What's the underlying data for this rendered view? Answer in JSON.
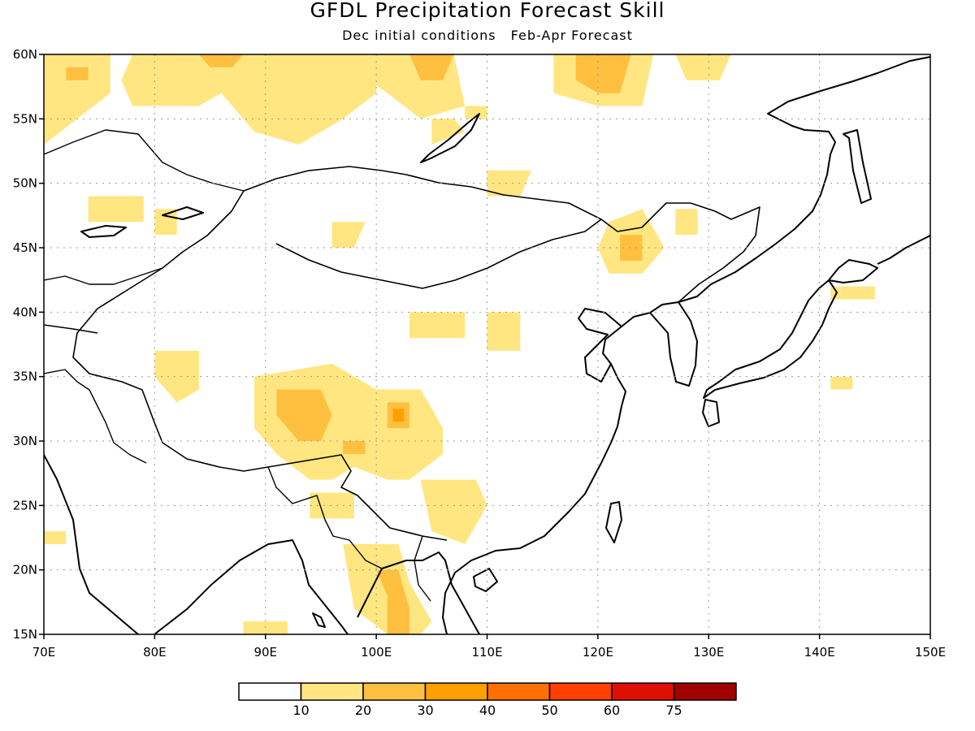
{
  "title": "GFDL Precipitation Forecast Skill",
  "subtitle": {
    "conditions": "Dec initial conditions",
    "forecast": "Feb-Apr Forecast"
  },
  "map": {
    "lon_range": [
      70,
      150
    ],
    "lat_range": [
      15,
      60
    ],
    "lon_ticks": [
      "70E",
      "80E",
      "90E",
      "100E",
      "110E",
      "120E",
      "130E",
      "140E",
      "150E"
    ],
    "lat_ticks": [
      "60N",
      "55N",
      "50N",
      "45N",
      "40N",
      "35N",
      "30N",
      "25N",
      "20N",
      "15N"
    ],
    "gridlines": "dotted"
  },
  "colorbar": {
    "colors": [
      "#ffffff",
      "#ffe680",
      "#ffc040",
      "#ffa000",
      "#ff7000",
      "#ff4000",
      "#e01000",
      "#a00000"
    ],
    "labels": [
      "10",
      "20",
      "30",
      "40",
      "50",
      "60",
      "75"
    ]
  },
  "chart_data": {
    "type": "heatmap",
    "variable": "precipitation forecast skill",
    "levels": [
      10,
      20,
      30,
      40,
      50,
      60,
      75
    ],
    "x_range": [
      70,
      150
    ],
    "y_range": [
      15,
      60
    ],
    "regions": [
      {
        "level": 10,
        "poly": [
          [
            70,
            60
          ],
          [
            76,
            60
          ],
          [
            76,
            57
          ],
          [
            73,
            55
          ],
          [
            70,
            53
          ]
        ]
      },
      {
        "level": 20,
        "poly": [
          [
            72,
            59
          ],
          [
            74,
            59
          ],
          [
            74,
            58
          ],
          [
            72,
            58
          ]
        ]
      },
      {
        "level": 10,
        "poly": [
          [
            78,
            60
          ],
          [
            100,
            60
          ],
          [
            100,
            57
          ],
          [
            97,
            55
          ],
          [
            93,
            53
          ],
          [
            89,
            54
          ],
          [
            86,
            57
          ],
          [
            84,
            56
          ],
          [
            78,
            56
          ],
          [
            77,
            58
          ]
        ]
      },
      {
        "level": 20,
        "poly": [
          [
            84,
            60
          ],
          [
            88,
            60
          ],
          [
            87,
            59
          ],
          [
            85,
            59
          ]
        ]
      },
      {
        "level": 10,
        "poly": [
          [
            96,
            60
          ],
          [
            107,
            60
          ],
          [
            108,
            56
          ],
          [
            104,
            55
          ],
          [
            101,
            57
          ]
        ]
      },
      {
        "level": 20,
        "poly": [
          [
            103,
            60
          ],
          [
            107,
            60
          ],
          [
            106,
            58
          ],
          [
            104,
            58
          ]
        ]
      },
      {
        "level": 10,
        "poly": [
          [
            105,
            55
          ],
          [
            107,
            55
          ],
          [
            108,
            54
          ],
          [
            105,
            53
          ]
        ]
      },
      {
        "level": 10,
        "poly": [
          [
            108,
            56
          ],
          [
            110,
            56
          ],
          [
            110,
            55
          ],
          [
            108,
            55
          ]
        ]
      },
      {
        "level": 10,
        "poly": [
          [
            116,
            60
          ],
          [
            125,
            60
          ],
          [
            124,
            56
          ],
          [
            120,
            56
          ],
          [
            116,
            57
          ]
        ]
      },
      {
        "level": 20,
        "poly": [
          [
            118,
            60
          ],
          [
            123,
            60
          ],
          [
            122,
            57
          ],
          [
            120,
            57
          ],
          [
            118,
            58
          ]
        ]
      },
      {
        "level": 10,
        "poly": [
          [
            127,
            60
          ],
          [
            132,
            60
          ],
          [
            131,
            58
          ],
          [
            128,
            58
          ]
        ]
      },
      {
        "level": 10,
        "poly": [
          [
            110,
            51
          ],
          [
            114,
            51
          ],
          [
            113,
            49
          ],
          [
            110,
            49
          ]
        ]
      },
      {
        "level": 10,
        "poly": [
          [
            74,
            49
          ],
          [
            79,
            49
          ],
          [
            79,
            47
          ],
          [
            74,
            47
          ]
        ]
      },
      {
        "level": 10,
        "poly": [
          [
            80,
            48
          ],
          [
            82,
            48
          ],
          [
            82,
            46
          ],
          [
            80,
            46
          ]
        ]
      },
      {
        "level": 10,
        "poly": [
          [
            96,
            47
          ],
          [
            99,
            47
          ],
          [
            98,
            45
          ],
          [
            96,
            45
          ]
        ]
      },
      {
        "level": 10,
        "poly": [
          [
            121,
            47
          ],
          [
            124,
            48
          ],
          [
            126,
            45
          ],
          [
            124,
            43
          ],
          [
            121,
            43
          ],
          [
            120,
            45
          ]
        ]
      },
      {
        "level": 20,
        "poly": [
          [
            122,
            46
          ],
          [
            124,
            46
          ],
          [
            124,
            44
          ],
          [
            122,
            44
          ]
        ]
      },
      {
        "level": 10,
        "poly": [
          [
            127,
            48
          ],
          [
            129,
            48
          ],
          [
            129,
            46
          ],
          [
            127,
            46
          ]
        ]
      },
      {
        "level": 10,
        "poly": [
          [
            141,
            42
          ],
          [
            145,
            42
          ],
          [
            145,
            41
          ],
          [
            141,
            41
          ]
        ]
      },
      {
        "level": 10,
        "poly": [
          [
            110,
            40
          ],
          [
            113,
            40
          ],
          [
            113,
            37
          ],
          [
            110,
            37
          ]
        ]
      },
      {
        "level": 10,
        "poly": [
          [
            103,
            40
          ],
          [
            108,
            40
          ],
          [
            108,
            38
          ],
          [
            103,
            38
          ]
        ]
      },
      {
        "level": 10,
        "poly": [
          [
            80,
            37
          ],
          [
            84,
            37
          ],
          [
            84,
            34
          ],
          [
            82,
            33
          ],
          [
            80,
            35
          ]
        ]
      },
      {
        "level": 10,
        "poly": [
          [
            89,
            35
          ],
          [
            96,
            36
          ],
          [
            100,
            34
          ],
          [
            104,
            34
          ],
          [
            106,
            31
          ],
          [
            106,
            29
          ],
          [
            103,
            27
          ],
          [
            101,
            27
          ],
          [
            98,
            28
          ],
          [
            96,
            27
          ],
          [
            94,
            27
          ],
          [
            91,
            29
          ],
          [
            89,
            31
          ]
        ]
      },
      {
        "level": 20,
        "poly": [
          [
            91,
            34
          ],
          [
            95,
            34
          ],
          [
            96,
            32
          ],
          [
            95,
            30
          ],
          [
            93,
            30
          ],
          [
            91,
            32
          ]
        ]
      },
      {
        "level": 20,
        "poly": [
          [
            101,
            33
          ],
          [
            103,
            33
          ],
          [
            103,
            31
          ],
          [
            101,
            31
          ]
        ]
      },
      {
        "level": 30,
        "poly": [
          [
            101.5,
            32.5
          ],
          [
            102.5,
            32.5
          ],
          [
            102.5,
            31.5
          ],
          [
            101.5,
            31.5
          ]
        ]
      },
      {
        "level": 20,
        "poly": [
          [
            97,
            30
          ],
          [
            99,
            30
          ],
          [
            99,
            29
          ],
          [
            97,
            29
          ]
        ]
      },
      {
        "level": 10,
        "poly": [
          [
            94,
            26
          ],
          [
            98,
            26
          ],
          [
            98,
            24
          ],
          [
            94,
            24
          ]
        ]
      },
      {
        "level": 10,
        "poly": [
          [
            104,
            27
          ],
          [
            109,
            27
          ],
          [
            110,
            25
          ],
          [
            108,
            22
          ],
          [
            105,
            23
          ]
        ]
      },
      {
        "level": 10,
        "poly": [
          [
            97,
            22
          ],
          [
            102,
            22
          ],
          [
            103,
            19
          ],
          [
            105,
            16
          ],
          [
            104,
            15
          ],
          [
            101,
            15
          ],
          [
            98,
            17
          ]
        ]
      },
      {
        "level": 20,
        "poly": [
          [
            100,
            20
          ],
          [
            102,
            20
          ],
          [
            103,
            17
          ],
          [
            103,
            15
          ],
          [
            101,
            15
          ],
          [
            101,
            18
          ]
        ]
      },
      {
        "level": 10,
        "poly": [
          [
            70,
            23
          ],
          [
            72,
            23
          ],
          [
            72,
            22
          ],
          [
            70,
            22
          ]
        ]
      },
      {
        "level": 10,
        "poly": [
          [
            88,
            16
          ],
          [
            92,
            16
          ],
          [
            92,
            15
          ],
          [
            88,
            15
          ]
        ]
      },
      {
        "level": 10,
        "poly": [
          [
            141,
            35
          ],
          [
            143,
            35
          ],
          [
            143,
            34
          ],
          [
            141,
            34
          ]
        ]
      }
    ]
  }
}
